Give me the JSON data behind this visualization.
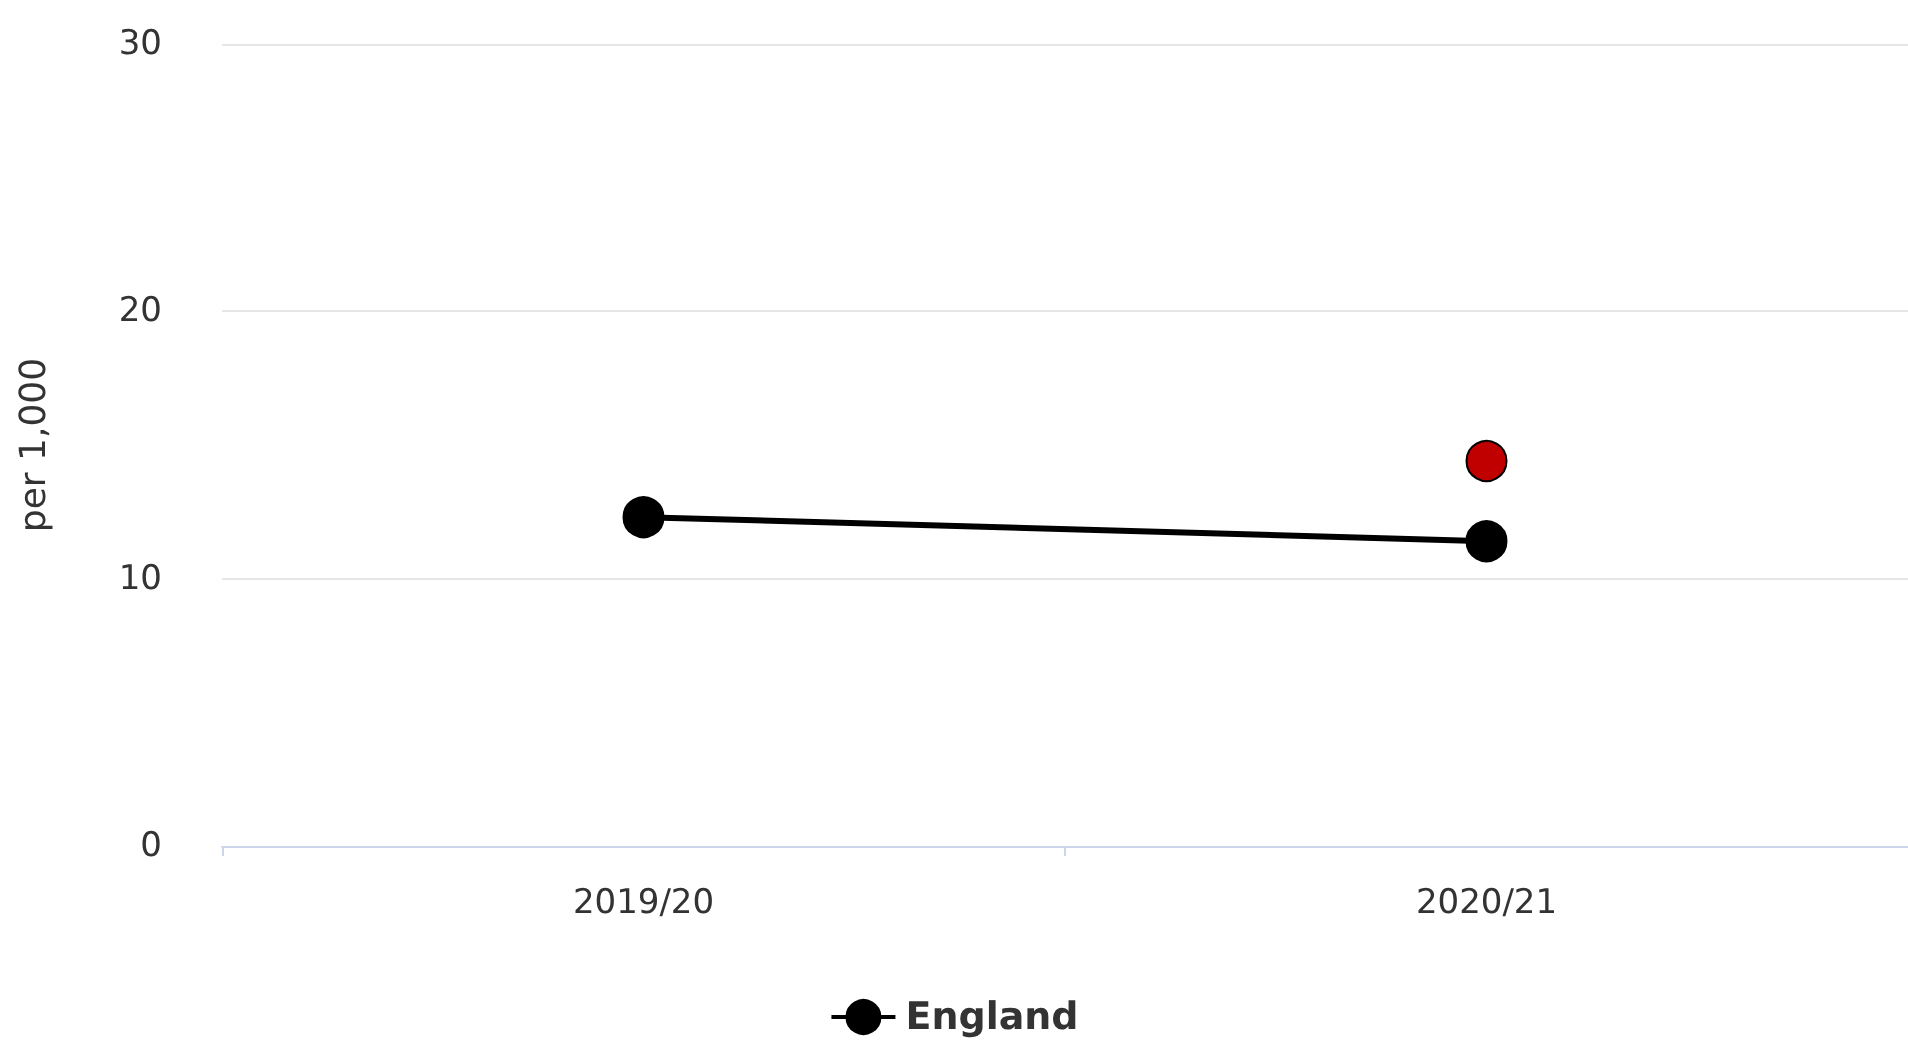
{
  "chart_data": {
    "type": "line",
    "ylabel": "per 1,000",
    "categories": [
      "2019/20",
      "2020/21"
    ],
    "series": [
      {
        "name": "England",
        "color": "#000000",
        "values": [
          12.3,
          11.4
        ],
        "marker": "circle"
      },
      {
        "type": "scatter",
        "color": "#c00000",
        "x": [
          "2020/21"
        ],
        "values": [
          14.4
        ],
        "marker": "circle"
      }
    ],
    "ylim": [
      0,
      30
    ],
    "yticks": [
      0,
      10,
      20,
      30
    ],
    "grid": "y",
    "legend": "bottom",
    "line_style": "solid"
  }
}
